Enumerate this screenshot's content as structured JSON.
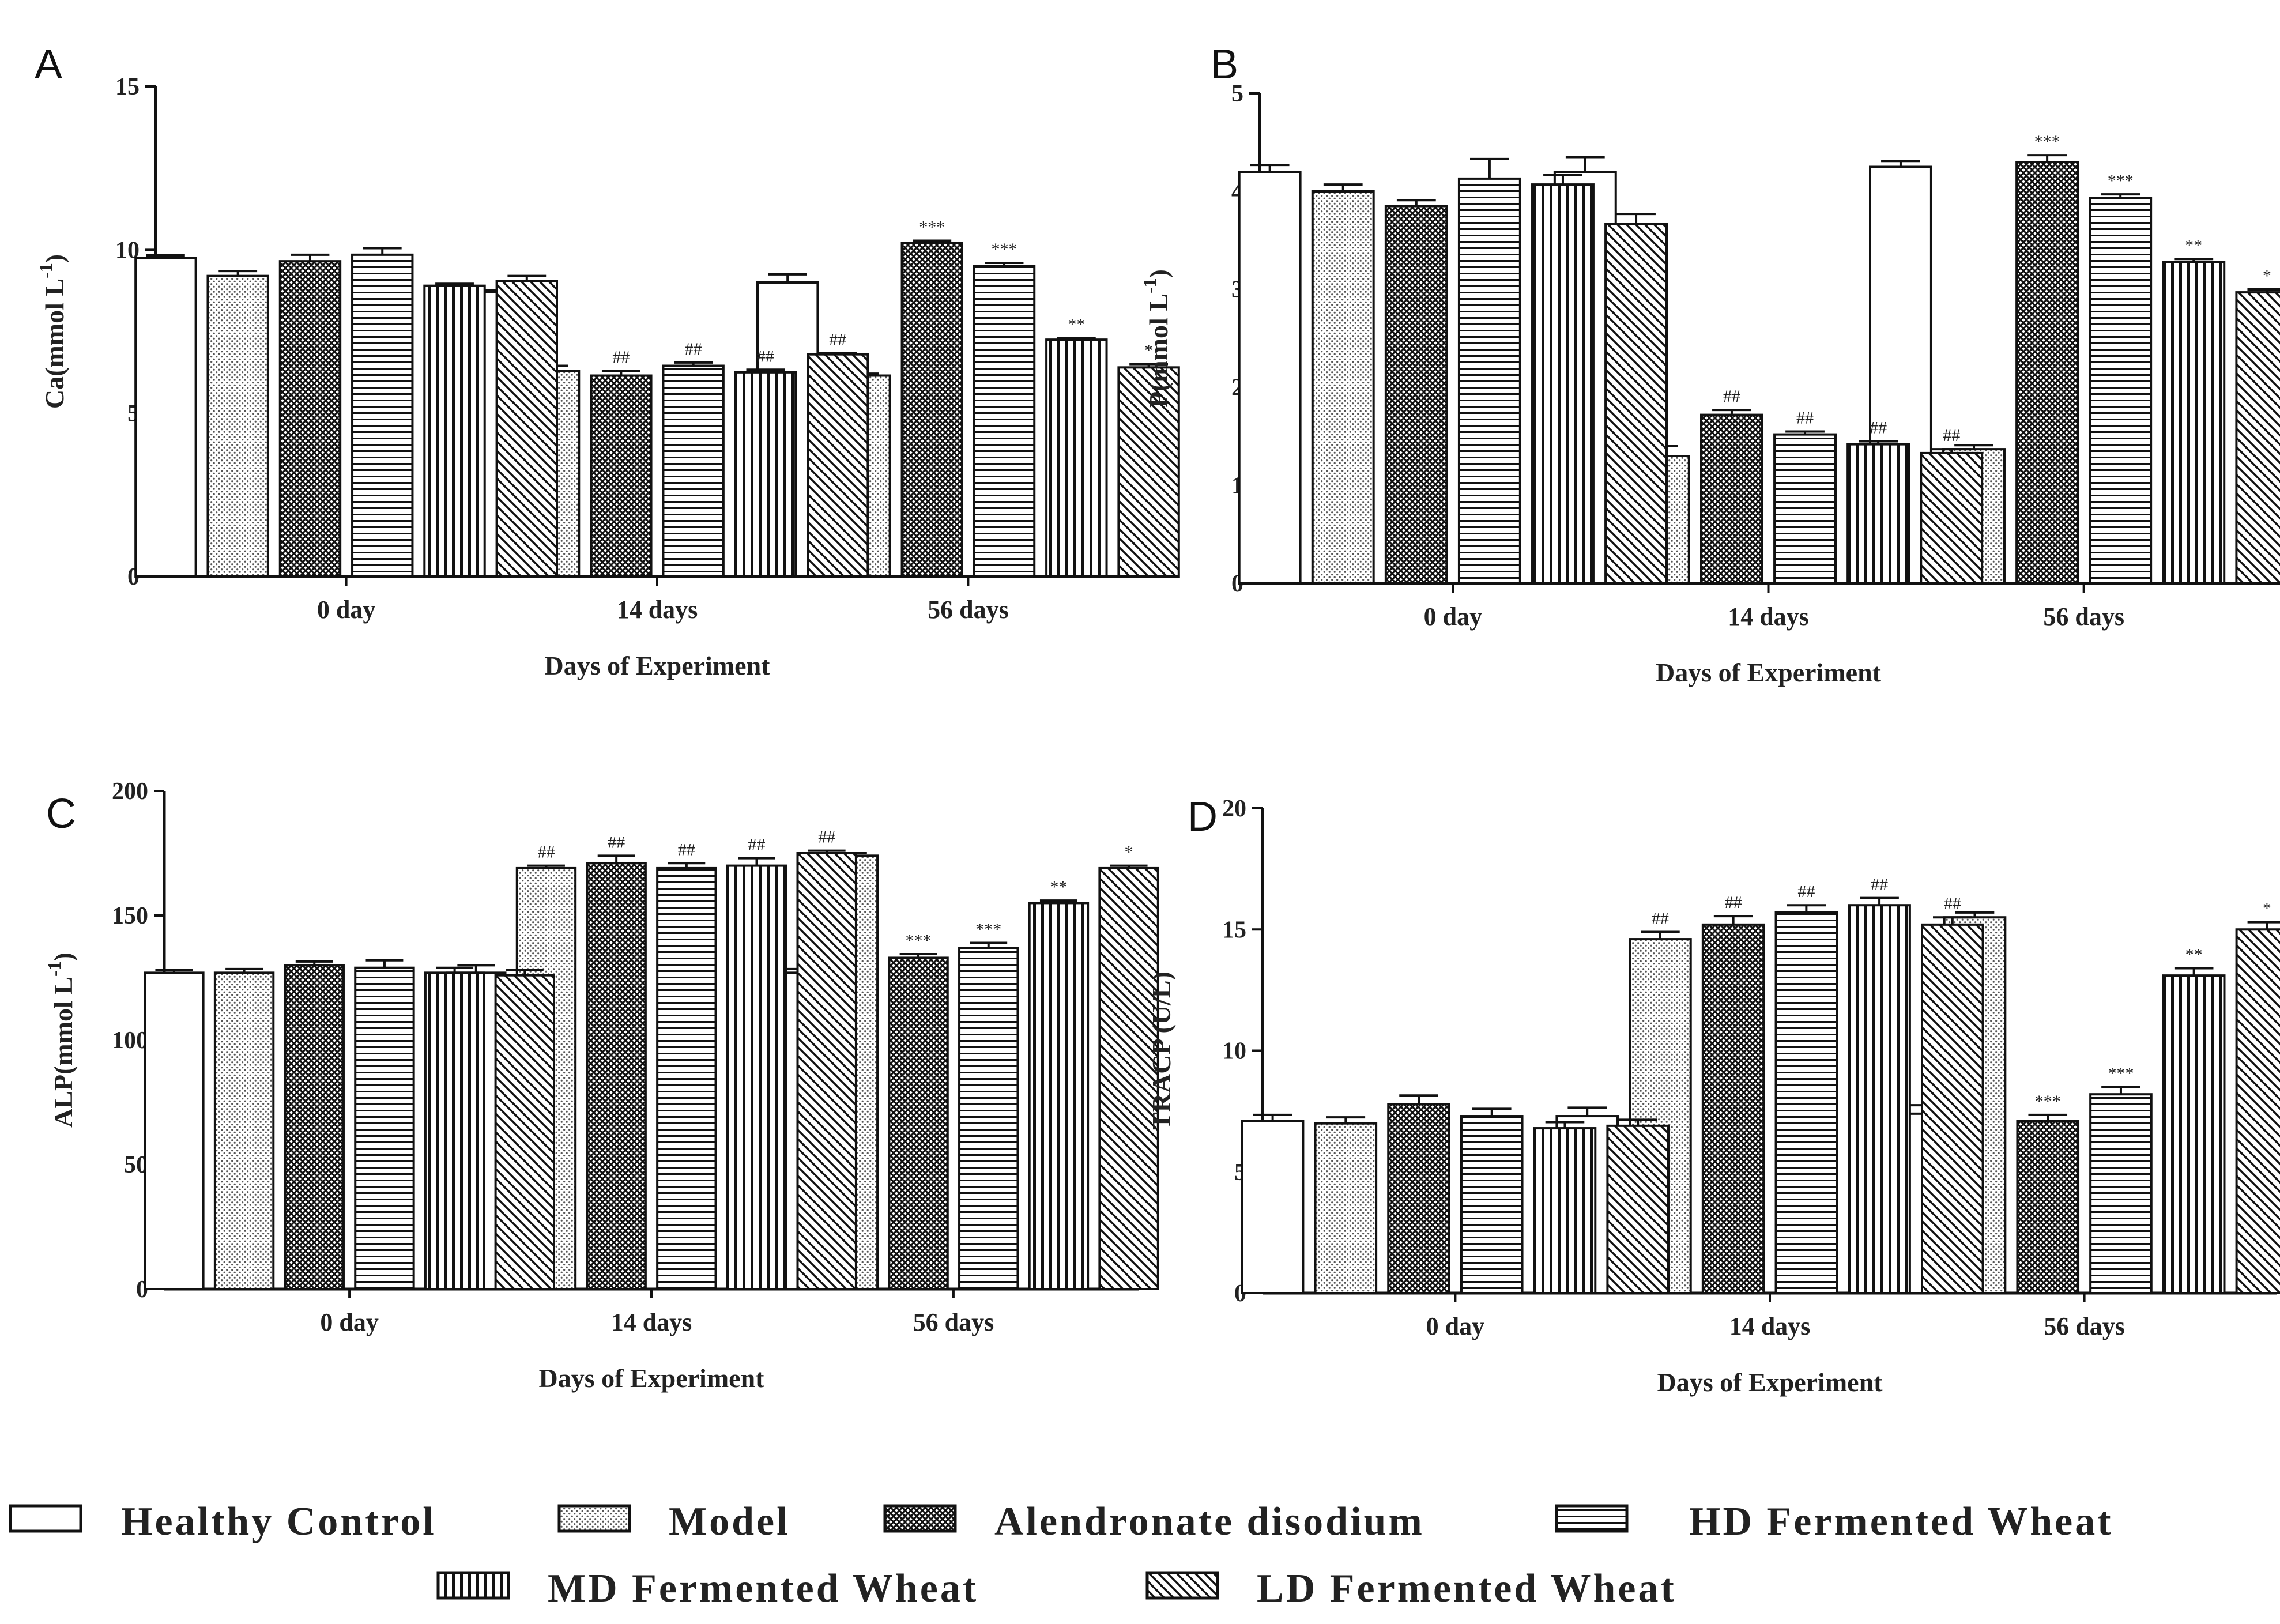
{
  "groups": [
    "Healthy Control",
    "Model",
    "Alendronate disodium",
    "HD Fermented Wheat",
    "MD Fermented Wheat",
    "LD Fermented Wheat"
  ],
  "patterns": [
    "none",
    "dots",
    "crosshatch",
    "hlines",
    "vlines",
    "diag"
  ],
  "legend": {
    "row1": [
      "Healthy Control",
      "Model",
      "Alendronate disodium",
      "HD Fermented Wheat"
    ],
    "row2": [
      "MD Fermented Wheat",
      "LD Fermented Wheat"
    ]
  },
  "chart_data": [
    {
      "panel": "A",
      "type": "bar",
      "title": "",
      "xlabel": "Days of Experiment",
      "ylabel": "Ca(mmol L",
      "ylabel_sup": "-1",
      "ylim": [
        0,
        15
      ],
      "yticks": [
        0,
        5,
        10,
        15
      ],
      "categories": [
        "0 day",
        "14 days",
        "56 days"
      ],
      "series": [
        {
          "name": "Healthy Control",
          "values": [
            9.75,
            8.7,
            9.0
          ],
          "errors": [
            0.08,
            0.06,
            0.25
          ],
          "sig": [
            "",
            "",
            ""
          ]
        },
        {
          "name": "Model",
          "values": [
            9.2,
            6.3,
            6.15
          ],
          "errors": [
            0.15,
            0.15,
            0.06
          ],
          "sig": [
            "",
            "##",
            ""
          ]
        },
        {
          "name": "Alendronate disodium",
          "values": [
            9.65,
            6.15,
            10.2
          ],
          "errors": [
            0.2,
            0.15,
            0.08
          ],
          "sig": [
            "",
            "##",
            "***"
          ]
        },
        {
          "name": "HD Fermented Wheat",
          "values": [
            9.85,
            6.45,
            9.5
          ],
          "errors": [
            0.2,
            0.1,
            0.1
          ],
          "sig": [
            "",
            "##",
            "***"
          ]
        },
        {
          "name": "MD Fermented Wheat",
          "values": [
            8.9,
            6.25,
            7.25
          ],
          "errors": [
            0.06,
            0.08,
            0.05
          ],
          "sig": [
            "",
            "##",
            "**"
          ]
        },
        {
          "name": "LD Fermented Wheat",
          "values": [
            9.05,
            6.8,
            6.4
          ],
          "errors": [
            0.15,
            0.04,
            0.1
          ],
          "sig": [
            "",
            "##",
            "*"
          ]
        }
      ]
    },
    {
      "panel": "B",
      "type": "bar",
      "title": "",
      "xlabel": "Days of Experiment",
      "ylabel": "P(mmol L",
      "ylabel_sup": "-1",
      "ylim": [
        0,
        5
      ],
      "yticks": [
        0,
        1,
        2,
        3,
        4,
        5
      ],
      "categories": [
        "0 day",
        "14 days",
        "56 days"
      ],
      "series": [
        {
          "name": "Healthy Control",
          "values": [
            4.2,
            4.2,
            4.25
          ],
          "errors": [
            0.07,
            0.15,
            0.06
          ],
          "sig": [
            "",
            "",
            ""
          ]
        },
        {
          "name": "Model",
          "values": [
            4.0,
            1.3,
            1.37
          ],
          "errors": [
            0.07,
            0.1,
            0.04
          ],
          "sig": [
            "",
            "##",
            ""
          ]
        },
        {
          "name": "Alendronate disodium",
          "values": [
            3.85,
            1.72,
            4.3
          ],
          "errors": [
            0.06,
            0.05,
            0.07
          ],
          "sig": [
            "",
            "##",
            "***"
          ]
        },
        {
          "name": "HD Fermented Wheat",
          "values": [
            4.13,
            1.52,
            3.93
          ],
          "errors": [
            0.2,
            0.03,
            0.04
          ],
          "sig": [
            "",
            "##",
            "***"
          ]
        },
        {
          "name": "MD Fermented Wheat",
          "values": [
            4.07,
            1.42,
            3.28
          ],
          "errors": [
            0.1,
            0.03,
            0.03
          ],
          "sig": [
            "",
            "##",
            "**"
          ]
        },
        {
          "name": "LD Fermented Wheat",
          "values": [
            3.67,
            1.33,
            2.97
          ],
          "errors": [
            0.1,
            0.04,
            0.03
          ],
          "sig": [
            "",
            "##",
            "*"
          ]
        }
      ]
    },
    {
      "panel": "C",
      "type": "bar",
      "title": "",
      "xlabel": "Days of Experiment",
      "ylabel": "ALP(mmol L",
      "ylabel_sup": "-1",
      "ylim": [
        0,
        200
      ],
      "yticks": [
        0,
        50,
        100,
        150,
        200
      ],
      "categories": [
        "0 day",
        "14 days",
        "56 days"
      ],
      "series": [
        {
          "name": "Healthy Control",
          "values": [
            127,
            127,
            127
          ],
          "errors": [
            1,
            3,
            1.5
          ],
          "sig": [
            "",
            "",
            ""
          ]
        },
        {
          "name": "Model",
          "values": [
            127,
            169,
            174
          ],
          "errors": [
            1.5,
            1,
            1
          ],
          "sig": [
            "",
            "##",
            ""
          ]
        },
        {
          "name": "Alendronate disodium",
          "values": [
            130,
            171,
            133
          ],
          "errors": [
            1.5,
            3,
            1.5
          ],
          "sig": [
            "",
            "##",
            "***"
          ]
        },
        {
          "name": "HD Fermented Wheat",
          "values": [
            129,
            169,
            137
          ],
          "errors": [
            3,
            2,
            2
          ],
          "sig": [
            "",
            "##",
            "***"
          ]
        },
        {
          "name": "MD Fermented Wheat",
          "values": [
            127,
            170,
            155
          ],
          "errors": [
            2,
            3,
            1
          ],
          "sig": [
            "",
            "##",
            "**"
          ]
        },
        {
          "name": "LD Fermented Wheat",
          "values": [
            126,
            175,
            169
          ],
          "errors": [
            2,
            1,
            1
          ],
          "sig": [
            "",
            "##",
            "*"
          ]
        }
      ]
    },
    {
      "panel": "D",
      "type": "bar",
      "title": "",
      "xlabel": "Days of Experiment",
      "ylabel": "TRACP (U/L)",
      "ylabel_sup": "",
      "ylim": [
        0,
        20
      ],
      "yticks": [
        0,
        5,
        10,
        15,
        20
      ],
      "categories": [
        "0 day",
        "14 days",
        "56 days"
      ],
      "series": [
        {
          "name": "Healthy Control",
          "values": [
            7.1,
            7.3,
            7.4
          ],
          "errors": [
            0.25,
            0.35,
            0.35
          ],
          "sig": [
            "",
            "",
            ""
          ]
        },
        {
          "name": "Model",
          "values": [
            7.0,
            14.6,
            15.5
          ],
          "errors": [
            0.25,
            0.3,
            0.2
          ],
          "sig": [
            "",
            "##",
            ""
          ]
        },
        {
          "name": "Alendronate disodium",
          "values": [
            7.8,
            15.2,
            7.1
          ],
          "errors": [
            0.35,
            0.35,
            0.25
          ],
          "sig": [
            "",
            "##",
            "***"
          ]
        },
        {
          "name": "HD Fermented Wheat",
          "values": [
            7.3,
            15.7,
            8.2
          ],
          "errors": [
            0.3,
            0.3,
            0.3
          ],
          "sig": [
            "",
            "##",
            "***"
          ]
        },
        {
          "name": "MD Fermented Wheat",
          "values": [
            6.8,
            16.0,
            13.1
          ],
          "errors": [
            0.25,
            0.3,
            0.3
          ],
          "sig": [
            "",
            "##",
            "**"
          ]
        },
        {
          "name": "LD Fermented Wheat",
          "values": [
            6.9,
            15.2,
            15.0
          ],
          "errors": [
            0.25,
            0.3,
            0.3
          ],
          "sig": [
            "",
            "##",
            "*"
          ]
        }
      ]
    }
  ]
}
